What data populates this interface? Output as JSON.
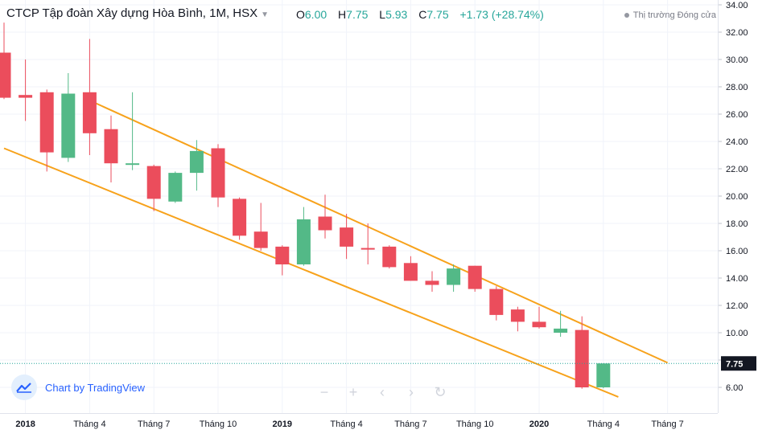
{
  "header": {
    "title": "CTCP Tập đoàn Xây dựng Hòa Bình, 1M, HSX",
    "o_label": "O",
    "o_value": "6.00",
    "h_label": "H",
    "h_value": "7.75",
    "l_label": "L",
    "l_value": "5.93",
    "c_label": "C",
    "c_value": "7.75",
    "change": "+1.73 (+28.74%)"
  },
  "status": "Thị trường Đóng cửa",
  "brand": "Chart by TradingView",
  "toolbar": {
    "icons": [
      "minus-icon",
      "plus-icon",
      "chevron-left-icon",
      "chevron-right-icon",
      "reset-icon"
    ]
  },
  "colors": {
    "up": "#53b987",
    "down": "#eb4d5c",
    "channel": "#f7a21b",
    "price_line": "#26a69a",
    "price_badge": "#131722"
  },
  "chart_data": {
    "type": "candlestick",
    "title": "CTCP Tập đoàn Xây dựng Hòa Bình, 1M, HSX",
    "y_ticks": [
      6,
      8,
      10,
      12,
      14,
      16,
      18,
      20,
      22,
      24,
      26,
      28,
      30,
      32,
      34
    ],
    "y_tick_labels": [
      "6.00",
      "8.00",
      "10.00",
      "12.00",
      "14.00",
      "16.00",
      "18.00",
      "20.00",
      "22.00",
      "24.00",
      "26.00",
      "28.00",
      "30.00",
      "32.00",
      "34.00"
    ],
    "ylim": [
      4.0,
      34.5
    ],
    "x_tick_labels": [
      {
        "label": "2018",
        "index": 1,
        "bold": true
      },
      {
        "label": "Tháng 4",
        "index": 4,
        "bold": false
      },
      {
        "label": "Tháng 7",
        "index": 7,
        "bold": false
      },
      {
        "label": "Tháng 10",
        "index": 10,
        "bold": false
      },
      {
        "label": "2019",
        "index": 13,
        "bold": true
      },
      {
        "label": "Tháng 4",
        "index": 16,
        "bold": false
      },
      {
        "label": "Tháng 7",
        "index": 19,
        "bold": false
      },
      {
        "label": "Tháng 10",
        "index": 22,
        "bold": false
      },
      {
        "label": "2020",
        "index": 25,
        "bold": true
      },
      {
        "label": "Tháng 4",
        "index": 28,
        "bold": false
      },
      {
        "label": "Tháng 7",
        "index": 31,
        "bold": false
      }
    ],
    "last_price": 7.75,
    "last_price_label": "7.75",
    "candles": [
      {
        "o": 30.5,
        "h": 32.7,
        "l": 27.1,
        "c": 27.2
      },
      {
        "o": 27.4,
        "h": 30.0,
        "l": 25.5,
        "c": 27.2
      },
      {
        "o": 27.6,
        "h": 27.8,
        "l": 21.8,
        "c": 23.2
      },
      {
        "o": 22.8,
        "h": 29.0,
        "l": 22.5,
        "c": 27.5
      },
      {
        "o": 27.6,
        "h": 31.5,
        "l": 23.0,
        "c": 24.6
      },
      {
        "o": 24.9,
        "h": 25.9,
        "l": 21.0,
        "c": 22.4
      },
      {
        "o": 22.3,
        "h": 27.6,
        "l": 21.9,
        "c": 22.4
      },
      {
        "o": 22.2,
        "h": 22.3,
        "l": 18.9,
        "c": 19.8
      },
      {
        "o": 19.6,
        "h": 21.8,
        "l": 19.5,
        "c": 21.7
      },
      {
        "o": 21.7,
        "h": 24.1,
        "l": 20.4,
        "c": 23.3
      },
      {
        "o": 23.5,
        "h": 23.8,
        "l": 19.2,
        "c": 19.9
      },
      {
        "o": 19.8,
        "h": 19.9,
        "l": 16.8,
        "c": 17.1
      },
      {
        "o": 17.4,
        "h": 19.5,
        "l": 16.0,
        "c": 16.2
      },
      {
        "o": 16.3,
        "h": 16.4,
        "l": 14.2,
        "c": 15.0
      },
      {
        "o": 15.0,
        "h": 19.2,
        "l": 14.9,
        "c": 18.3
      },
      {
        "o": 18.5,
        "h": 20.1,
        "l": 16.9,
        "c": 17.5
      },
      {
        "o": 17.7,
        "h": 18.7,
        "l": 15.4,
        "c": 16.3
      },
      {
        "o": 16.2,
        "h": 18.0,
        "l": 15.0,
        "c": 16.1
      },
      {
        "o": 16.3,
        "h": 16.4,
        "l": 14.7,
        "c": 14.8
      },
      {
        "o": 15.1,
        "h": 15.6,
        "l": 13.8,
        "c": 13.8
      },
      {
        "o": 13.8,
        "h": 14.5,
        "l": 13.0,
        "c": 13.5
      },
      {
        "o": 13.5,
        "h": 15.0,
        "l": 13.0,
        "c": 14.7
      },
      {
        "o": 14.9,
        "h": 14.9,
        "l": 13.0,
        "c": 13.2
      },
      {
        "o": 13.2,
        "h": 13.4,
        "l": 10.9,
        "c": 11.3
      },
      {
        "o": 11.7,
        "h": 11.9,
        "l": 10.1,
        "c": 10.8
      },
      {
        "o": 10.8,
        "h": 11.9,
        "l": 10.3,
        "c": 10.4
      },
      {
        "o": 10.0,
        "h": 11.6,
        "l": 9.7,
        "c": 10.3
      },
      {
        "o": 10.2,
        "h": 11.2,
        "l": 5.9,
        "c": 6.0
      },
      {
        "o": 6.0,
        "h": 7.75,
        "l": 5.93,
        "c": 7.75
      }
    ],
    "trend_lines": [
      {
        "from": {
          "index": 4,
          "price": 27.0
        },
        "to": {
          "index": 31,
          "price": 7.8
        }
      },
      {
        "from": {
          "index": 0,
          "price": 23.5
        },
        "to": {
          "index": 28.7,
          "price": 5.3
        }
      }
    ]
  }
}
